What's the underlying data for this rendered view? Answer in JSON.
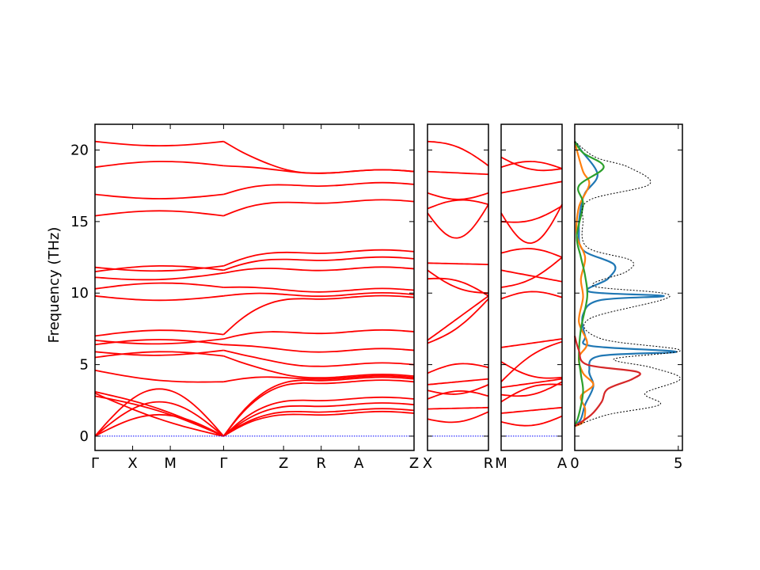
{
  "chart_data": [
    {
      "type": "line",
      "panel": "band-structure-1",
      "ylabel": "Frequency (THz)",
      "ylim": [
        -1,
        21.8
      ],
      "yticks": [
        0,
        5,
        10,
        15,
        20
      ],
      "kpoint_labels": [
        "Γ",
        "X",
        "M",
        "Γ",
        "Z",
        "R",
        "A",
        "Z"
      ],
      "kpoint_positions": [
        0,
        0.118,
        0.236,
        0.403,
        0.591,
        0.709,
        0.827,
        1.0
      ],
      "band_break_at": 0.403,
      "branches_left_start_end": [
        [
          0,
          0
        ],
        [
          0,
          0
        ],
        [
          0,
          0
        ],
        [
          2.8,
          0
        ],
        [
          3.0,
          0
        ],
        [
          3.1,
          0
        ],
        [
          4.6,
          3.8
        ],
        [
          5.5,
          5.6
        ],
        [
          5.9,
          6.0
        ],
        [
          6.4,
          6.4
        ],
        [
          6.7,
          6.8
        ],
        [
          7.0,
          7.1
        ],
        [
          9.8,
          9.8
        ],
        [
          10.3,
          10.4
        ],
        [
          11.1,
          11.4
        ],
        [
          11.5,
          11.6
        ],
        [
          11.8,
          11.9
        ],
        [
          15.4,
          15.4
        ],
        [
          16.9,
          16.9
        ],
        [
          18.8,
          18.9
        ],
        [
          20.6,
          20.6
        ]
      ],
      "branches_right_end": [
        1.6,
        1.8,
        2.2,
        2.6,
        3.8,
        4.0,
        4.1,
        4.2,
        5.0,
        6.0,
        7.3,
        9.7,
        9.9,
        10.2,
        11.7,
        12.4,
        12.9,
        16.4,
        17.6,
        18.5,
        18.5
      ],
      "zero_reference": 0
    },
    {
      "type": "line",
      "panel": "band-structure-2",
      "kpoint_labels": [
        "X",
        "R"
      ],
      "ylim": [
        -1,
        21.8
      ],
      "branches_start_end": [
        [
          1.2,
          1.7
        ],
        [
          1.9,
          2.0
        ],
        [
          2.6,
          2.8
        ],
        [
          3.2,
          3.6
        ],
        [
          3.6,
          4.0
        ],
        [
          4.4,
          4.8
        ],
        [
          6.5,
          9.6
        ],
        [
          6.7,
          9.8
        ],
        [
          11.0,
          9.8
        ],
        [
          11.6,
          10.0
        ],
        [
          12.1,
          12.0
        ],
        [
          15.9,
          16.2
        ],
        [
          17.0,
          17.0
        ],
        [
          18.5,
          18.3
        ],
        [
          20.6,
          18.9
        ]
      ],
      "dip_minimum": 13.9
    },
    {
      "type": "line",
      "panel": "band-structure-3",
      "kpoint_labels": [
        "M",
        "A"
      ],
      "ylim": [
        -1,
        21.8
      ],
      "branches_start_end": [
        [
          1.0,
          1.4
        ],
        [
          1.6,
          2.0
        ],
        [
          2.4,
          3.6
        ],
        [
          2.9,
          3.8
        ],
        [
          3.4,
          4.0
        ],
        [
          3.8,
          6.6
        ],
        [
          5.2,
          4.1
        ],
        [
          6.2,
          6.8
        ],
        [
          9.6,
          9.7
        ],
        [
          10.4,
          12.5
        ],
        [
          11.6,
          10.8
        ],
        [
          12.8,
          12.5
        ],
        [
          15.0,
          16.1
        ],
        [
          17.0,
          17.8
        ],
        [
          18.8,
          18.7
        ],
        [
          19.5,
          18.7
        ]
      ],
      "dip_minimum": 13.6
    },
    {
      "type": "line",
      "panel": "phonon-dos",
      "xlim": [
        0,
        5.2
      ],
      "xticks": [
        0,
        5
      ],
      "ylim": [
        -1,
        21.8
      ],
      "series": [
        {
          "color": "#1f77b4",
          "points": [
            [
              0,
              0.7
            ],
            [
              0.3,
              1.2
            ],
            [
              0.5,
              2.2
            ],
            [
              0.9,
              3.5
            ],
            [
              0.7,
              4.6
            ],
            [
              1.2,
              5.6
            ],
            [
              4.9,
              5.9
            ],
            [
              0.8,
              6.3
            ],
            [
              0.5,
              7.0
            ],
            [
              0.4,
              8.5
            ],
            [
              1.2,
              9.5
            ],
            [
              4.3,
              9.8
            ],
            [
              0.7,
              10.1
            ],
            [
              1.6,
              11.0
            ],
            [
              1.9,
              12.0
            ],
            [
              0.4,
              13.0
            ],
            [
              0.2,
              14.5
            ],
            [
              0.3,
              16.0
            ],
            [
              0.5,
              17.0
            ],
            [
              1.1,
              18.3
            ],
            [
              0.3,
              20.0
            ],
            [
              0,
              20.6
            ]
          ]
        },
        {
          "color": "#ff7f0e",
          "points": [
            [
              0,
              0.7
            ],
            [
              0.4,
              1.0
            ],
            [
              0.5,
              1.9
            ],
            [
              0.3,
              2.8
            ],
            [
              0.9,
              3.6
            ],
            [
              0.4,
              4.4
            ],
            [
              0.2,
              5.5
            ],
            [
              0.6,
              6.5
            ],
            [
              0.2,
              8.0
            ],
            [
              0.4,
              9.7
            ],
            [
              0.3,
              11.0
            ],
            [
              0.5,
              12.5
            ],
            [
              0.1,
              14.0
            ],
            [
              0.2,
              16.0
            ],
            [
              0.7,
              17.6
            ],
            [
              0.4,
              18.5
            ],
            [
              0.1,
              20.0
            ],
            [
              0,
              20.6
            ]
          ]
        },
        {
          "color": "#2ca02c",
          "points": [
            [
              0,
              0.7
            ],
            [
              0.2,
              1.5
            ],
            [
              0.4,
              3.1
            ],
            [
              0.3,
              4.3
            ],
            [
              0.2,
              5.6
            ],
            [
              0.3,
              7.5
            ],
            [
              0.6,
              9.7
            ],
            [
              0.5,
              11.2
            ],
            [
              0.3,
              12.5
            ],
            [
              0.1,
              14.0
            ],
            [
              0.4,
              16.2
            ],
            [
              0.2,
              17.5
            ],
            [
              1.4,
              18.8
            ],
            [
              0.4,
              19.8
            ],
            [
              0,
              20.6
            ]
          ]
        },
        {
          "color": "#d62728",
          "points": [
            [
              0,
              0.7
            ],
            [
              0.8,
              1.5
            ],
            [
              1.3,
              2.4
            ],
            [
              1.6,
              3.3
            ],
            [
              2.8,
              4.0
            ],
            [
              3.0,
              4.5
            ],
            [
              0.6,
              5.0
            ],
            [
              0.2,
              6.0
            ],
            [
              0,
              7.0
            ]
          ]
        },
        {
          "color": "#000000",
          "points": [
            [
              0,
              0.7
            ],
            [
              1.6,
              1.5
            ],
            [
              4.1,
              2.2
            ],
            [
              3.4,
              3.0
            ],
            [
              5.1,
              4.0
            ],
            [
              3.7,
              4.8
            ],
            [
              1.9,
              5.4
            ],
            [
              5.1,
              6.0
            ],
            [
              1.3,
              6.8
            ],
            [
              0.7,
              8.2
            ],
            [
              4.6,
              9.8
            ],
            [
              0.9,
              10.5
            ],
            [
              2.5,
              11.5
            ],
            [
              2.7,
              12.3
            ],
            [
              0.6,
              13.2
            ],
            [
              0.4,
              15.0
            ],
            [
              0.7,
              16.5
            ],
            [
              3.6,
              17.6
            ],
            [
              2.6,
              18.8
            ],
            [
              1.0,
              19.5
            ],
            [
              0,
              20.6
            ]
          ]
        }
      ]
    }
  ]
}
